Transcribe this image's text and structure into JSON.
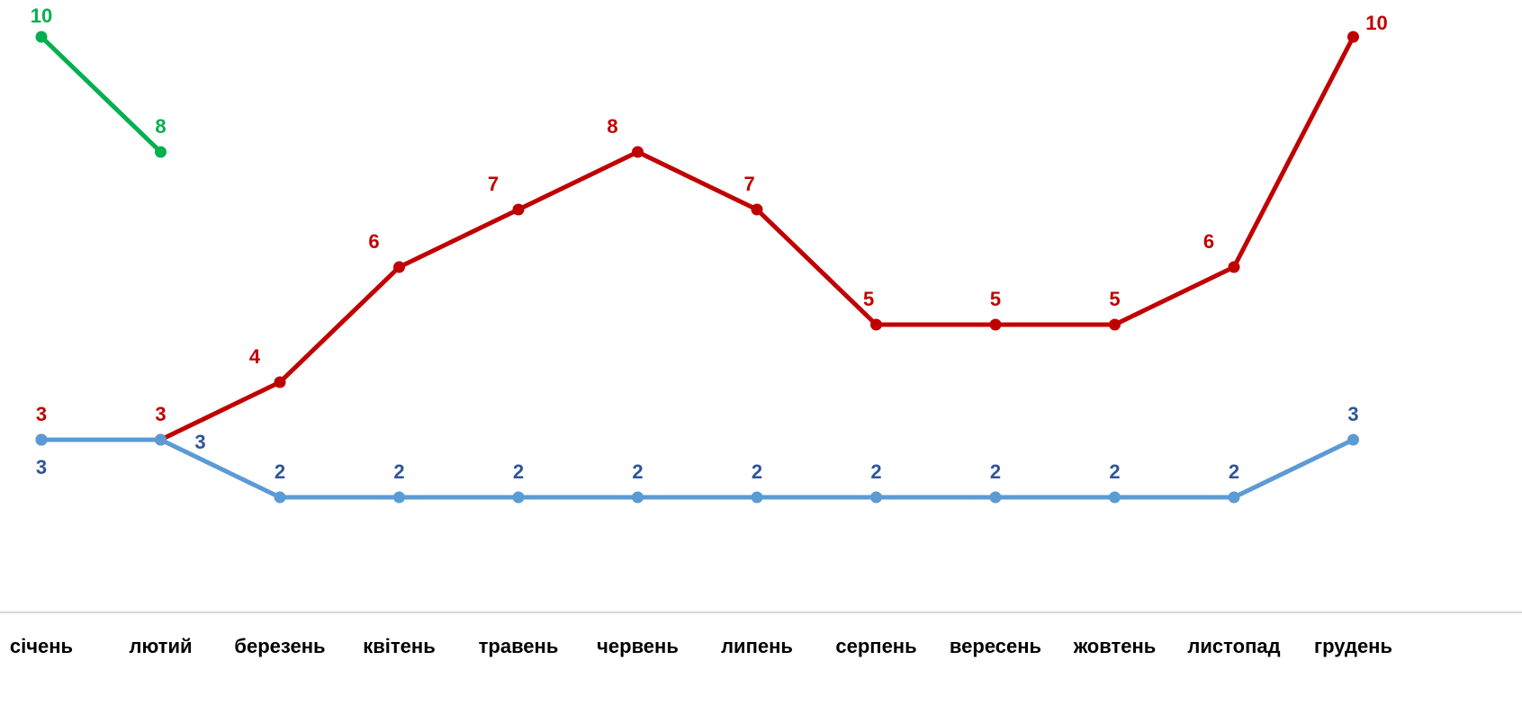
{
  "chart_data": {
    "type": "line",
    "categories": [
      "січень",
      "лютий",
      "березень",
      "квітень",
      "травень",
      "червень",
      "липень",
      "серпень",
      "вересень",
      "жовтень",
      "листопад",
      "грудень"
    ],
    "series": [
      {
        "color": "#c00000",
        "label_color": "#c00000",
        "values": [
          3,
          3,
          4,
          6,
          7,
          8,
          7,
          5,
          5,
          5,
          6,
          10
        ]
      },
      {
        "color": "#5b9bd5",
        "label_color": "#2f5597",
        "values": [
          3,
          3,
          2,
          2,
          2,
          2,
          2,
          2,
          2,
          2,
          2,
          3
        ]
      },
      {
        "color": "#00b050",
        "label_color": "#00b050",
        "values": [
          10,
          8,
          null,
          null,
          null,
          null,
          null,
          null,
          null,
          null,
          null,
          null
        ]
      }
    ],
    "ylim": [
      0,
      10
    ]
  }
}
